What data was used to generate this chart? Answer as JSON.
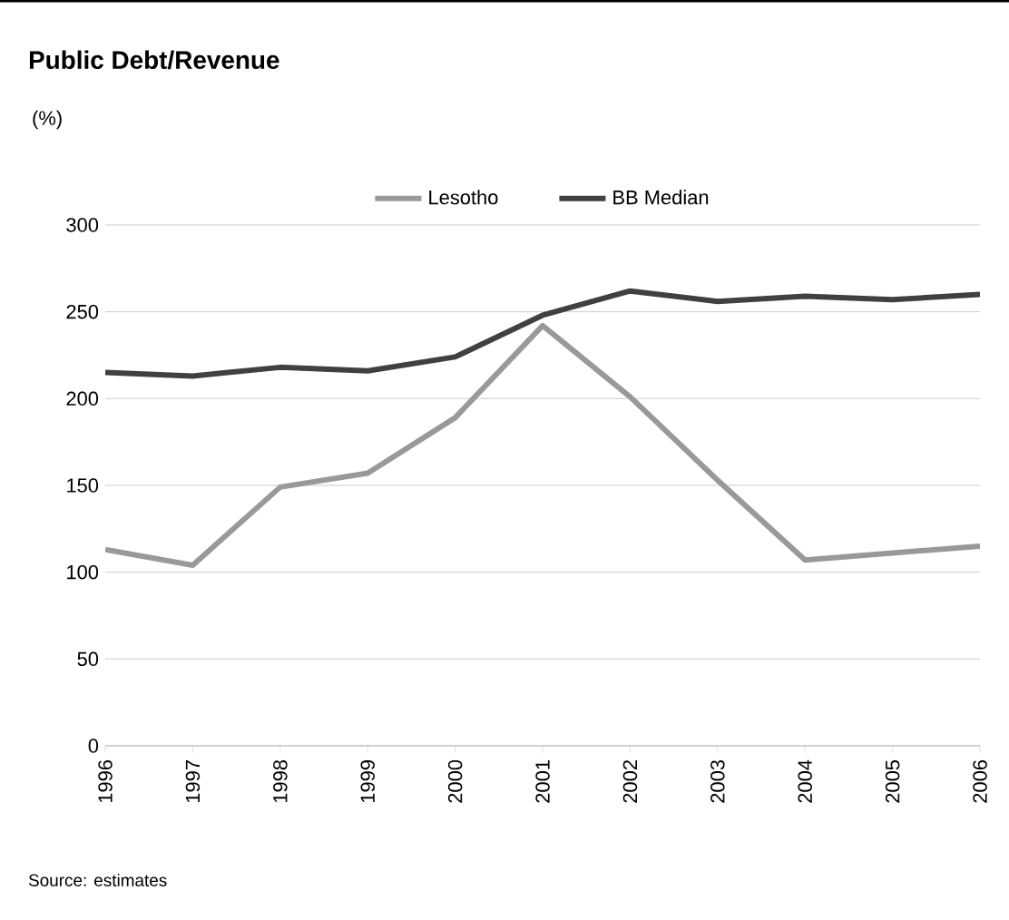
{
  "chart_data": {
    "type": "line",
    "title": "Public Debt/Revenue",
    "ylabel": "(%)",
    "categories": [
      "1996",
      "1997",
      "1998",
      "1999",
      "2000",
      "2001",
      "2002",
      "2003",
      "2004",
      "2005",
      "2006"
    ],
    "series": [
      {
        "name": "Lesotho",
        "color": "#999999",
        "values": [
          113,
          104,
          149,
          157,
          189,
          242,
          201,
          153,
          107,
          111,
          115
        ]
      },
      {
        "name": "BB Median",
        "color": "#404040",
        "values": [
          215,
          213,
          218,
          216,
          224,
          248,
          262,
          256,
          259,
          257,
          260
        ]
      }
    ],
    "ylim": [
      0,
      300
    ],
    "yticks": [
      0,
      50,
      100,
      150,
      200,
      250,
      300
    ],
    "grid": "y",
    "legend": "top",
    "marker": "none",
    "line_style": "solid",
    "annotations": [
      "Source: estimates"
    ]
  }
}
